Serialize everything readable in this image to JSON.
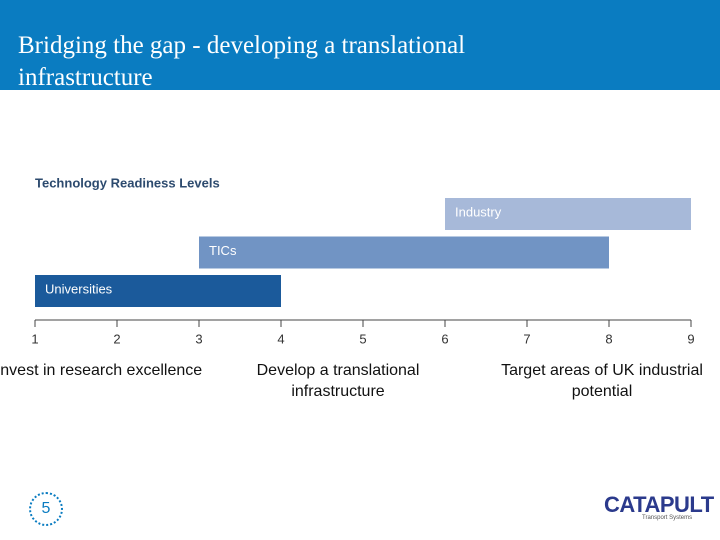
{
  "header": {
    "title": "Bridging the gap - developing a translational infrastructure"
  },
  "chart_data": {
    "type": "range",
    "title": "Technology Readiness Levels",
    "categories": [
      "Industry",
      "TICs",
      "Universities"
    ],
    "start": [
      6,
      3,
      1
    ],
    "end": [
      9,
      8,
      4
    ],
    "colors": [
      "#a7b9d9",
      "#7194c4",
      "#1b5a9b"
    ],
    "xlim": [
      1,
      9
    ],
    "xticks": [
      1,
      2,
      3,
      4,
      5,
      6,
      7,
      8,
      9
    ]
  },
  "captions": [
    "Invest in research excellence",
    "Develop a translational infrastructure",
    "Target areas of UK industrial potential"
  ],
  "footer": {
    "page": "5",
    "logo": "CATAPULT",
    "logo_sub": "Transport Systems"
  }
}
